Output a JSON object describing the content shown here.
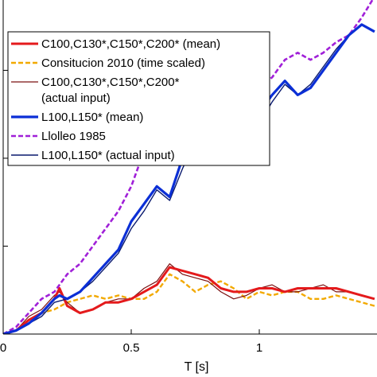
{
  "chart_data": {
    "type": "line",
    "xlabel": "T [s]",
    "ylabel": "",
    "xlim": [
      0,
      1.45
    ],
    "ylim": [
      0,
      0.95
    ],
    "yticks": [
      0,
      0.25,
      0.5,
      0.75
    ],
    "xticks": [
      {
        "value": 0,
        "label": "0"
      },
      {
        "value": 0.5,
        "label": "0.5"
      },
      {
        "value": 1,
        "label": "1"
      }
    ],
    "grid": false,
    "legend_position": "top-left",
    "series": [
      {
        "name": "C100,C130*,C150*,C200* (mean)",
        "color": "#e41a1c",
        "dash": "solid",
        "width": 3,
        "x": [
          0.0,
          0.05,
          0.1,
          0.15,
          0.2,
          0.22,
          0.25,
          0.3,
          0.35,
          0.4,
          0.45,
          0.5,
          0.55,
          0.6,
          0.65,
          0.7,
          0.75,
          0.8,
          0.85,
          0.9,
          0.95,
          1.0,
          1.05,
          1.1,
          1.15,
          1.2,
          1.25,
          1.3,
          1.35,
          1.4,
          1.45
        ],
        "y": [
          0.0,
          0.01,
          0.04,
          0.06,
          0.1,
          0.13,
          0.08,
          0.06,
          0.07,
          0.09,
          0.09,
          0.1,
          0.12,
          0.14,
          0.19,
          0.18,
          0.17,
          0.16,
          0.13,
          0.12,
          0.12,
          0.13,
          0.13,
          0.12,
          0.13,
          0.13,
          0.13,
          0.13,
          0.12,
          0.11,
          0.1
        ]
      },
      {
        "name": "Consitucion 2010 (time scaled)",
        "color": "#f2a900",
        "dash": "dashed",
        "width": 2.4,
        "x": [
          0.0,
          0.05,
          0.1,
          0.15,
          0.2,
          0.25,
          0.3,
          0.35,
          0.4,
          0.45,
          0.5,
          0.55,
          0.6,
          0.65,
          0.7,
          0.75,
          0.8,
          0.85,
          0.9,
          0.95,
          1.0,
          1.05,
          1.1,
          1.15,
          1.2,
          1.25,
          1.3,
          1.35,
          1.4,
          1.45
        ],
        "y": [
          0.0,
          0.01,
          0.04,
          0.06,
          0.07,
          0.09,
          0.1,
          0.11,
          0.1,
          0.11,
          0.1,
          0.1,
          0.12,
          0.17,
          0.15,
          0.12,
          0.14,
          0.15,
          0.13,
          0.1,
          0.12,
          0.11,
          0.12,
          0.12,
          0.1,
          0.1,
          0.11,
          0.1,
          0.09,
          0.08
        ]
      },
      {
        "name": "C100,C130*,C150*,C200* (actual input)",
        "color": "#7a1010",
        "dash": "solid",
        "width": 1.2,
        "x": [
          0.0,
          0.05,
          0.1,
          0.15,
          0.2,
          0.22,
          0.25,
          0.3,
          0.35,
          0.4,
          0.45,
          0.5,
          0.55,
          0.6,
          0.65,
          0.7,
          0.75,
          0.8,
          0.85,
          0.9,
          0.95,
          1.0,
          1.05,
          1.1,
          1.15,
          1.2,
          1.25,
          1.3,
          1.35,
          1.4,
          1.45
        ],
        "y": [
          0.0,
          0.01,
          0.05,
          0.07,
          0.11,
          0.12,
          0.09,
          0.06,
          0.07,
          0.09,
          0.1,
          0.1,
          0.13,
          0.15,
          0.2,
          0.17,
          0.16,
          0.15,
          0.12,
          0.1,
          0.11,
          0.13,
          0.14,
          0.12,
          0.12,
          0.13,
          0.14,
          0.12,
          0.12,
          0.11,
          0.1
        ]
      },
      {
        "name": "L100,L150* (mean)",
        "color": "#0b2fd6",
        "dash": "solid",
        "width": 3.2,
        "x": [
          0.0,
          0.05,
          0.1,
          0.15,
          0.2,
          0.22,
          0.25,
          0.3,
          0.35,
          0.4,
          0.45,
          0.5,
          0.55,
          0.6,
          0.65,
          0.7,
          0.75,
          0.8,
          0.85,
          0.9,
          0.95,
          1.0,
          1.05,
          1.1,
          1.15,
          1.2,
          1.25,
          1.3,
          1.35,
          1.4,
          1.45
        ],
        "y": [
          0.0,
          0.01,
          0.03,
          0.06,
          0.1,
          0.11,
          0.1,
          0.12,
          0.16,
          0.2,
          0.24,
          0.32,
          0.37,
          0.42,
          0.39,
          0.5,
          0.58,
          0.62,
          0.64,
          0.6,
          0.62,
          0.63,
          0.68,
          0.72,
          0.68,
          0.7,
          0.75,
          0.8,
          0.85,
          0.88,
          0.86
        ]
      },
      {
        "name": "Llolleo 1985",
        "color": "#a020d8",
        "dash": "dashed",
        "width": 2.6,
        "x": [
          0.0,
          0.05,
          0.1,
          0.15,
          0.2,
          0.25,
          0.3,
          0.35,
          0.4,
          0.45,
          0.5,
          0.55,
          0.6,
          0.65,
          0.7,
          0.75,
          0.8,
          0.85,
          0.9,
          0.95,
          1.0,
          1.05,
          1.1,
          1.15,
          1.2,
          1.25,
          1.3,
          1.35,
          1.4,
          1.45
        ],
        "y": [
          0.0,
          0.02,
          0.06,
          0.1,
          0.12,
          0.17,
          0.2,
          0.25,
          0.3,
          0.35,
          0.42,
          0.52,
          0.5,
          0.55,
          0.52,
          0.56,
          0.65,
          0.7,
          0.7,
          0.66,
          0.7,
          0.73,
          0.78,
          0.8,
          0.78,
          0.8,
          0.83,
          0.85,
          0.9,
          0.96
        ]
      },
      {
        "name": "L100,L150* (actual input)",
        "color": "#0a1a6e",
        "dash": "solid",
        "width": 1.4,
        "x": [
          0.0,
          0.05,
          0.1,
          0.15,
          0.2,
          0.25,
          0.3,
          0.35,
          0.4,
          0.45,
          0.5,
          0.55,
          0.6,
          0.65,
          0.7,
          0.75,
          0.8,
          0.85,
          0.9,
          0.95,
          1.0,
          1.05,
          1.1,
          1.15,
          1.2,
          1.25,
          1.3,
          1.35,
          1.4,
          1.45
        ],
        "y": [
          0.0,
          0.01,
          0.03,
          0.05,
          0.09,
          0.1,
          0.12,
          0.15,
          0.19,
          0.23,
          0.3,
          0.35,
          0.41,
          0.38,
          0.47,
          0.55,
          0.58,
          0.56,
          0.5,
          0.54,
          0.6,
          0.66,
          0.71,
          0.68,
          0.71,
          0.76,
          0.81,
          0.85,
          0.88,
          0.86
        ]
      }
    ],
    "legend_lines": [
      {
        "series": 0,
        "lines": [
          "C100,C130*,C150*,C200* (mean)"
        ]
      },
      {
        "series": 1,
        "lines": [
          "Consitucion 2010 (time scaled)"
        ]
      },
      {
        "series": 2,
        "lines": [
          "C100,C130*,C150*,C200*",
          "(actual input)"
        ]
      },
      {
        "series": 3,
        "lines": [
          "L100,L150* (mean)"
        ]
      },
      {
        "series": 4,
        "lines": [
          "Llolleo 1985"
        ]
      },
      {
        "series": 5,
        "lines": [
          "L100,L150* (actual input)"
        ]
      }
    ]
  }
}
